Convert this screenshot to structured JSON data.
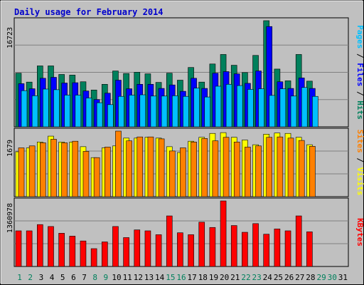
{
  "title": "Daily usage for February 2014",
  "colors": {
    "hits": "#00805c",
    "files": "#0000ff",
    "pages": "#00c0ff",
    "visits": "#ffff00",
    "sites": "#ff8000",
    "kbytes": "#ff0000",
    "weekday": "#000000",
    "weekend": "#00805c"
  },
  "chart_data": [
    {
      "type": "bar",
      "panel": "top",
      "ymax_label": "16723",
      "ylim": [
        0,
        16723
      ],
      "legend": [
        "Pages",
        "Files",
        "Hits"
      ],
      "categories": [
        "1",
        "2",
        "3",
        "4",
        "5",
        "6",
        "7",
        "8",
        "9",
        "10",
        "11",
        "12",
        "13",
        "14",
        "15",
        "16",
        "17",
        "18",
        "19",
        "20",
        "21",
        "22",
        "23",
        "24",
        "25",
        "26",
        "27",
        "28",
        "29",
        "30",
        "31"
      ],
      "series": [
        {
          "name": "Hits",
          "values": [
            8450,
            7050,
            9600,
            9600,
            8250,
            8150,
            7100,
            5800,
            6700,
            8800,
            8400,
            8600,
            8350,
            7000,
            8450,
            7350,
            9350,
            7050,
            9900,
            11400,
            9700,
            8550,
            11250,
            16723,
            9100,
            7250,
            11400,
            7200,
            null,
            null,
            null
          ]
        },
        {
          "name": "Files",
          "values": [
            6800,
            6000,
            7650,
            7800,
            6900,
            6950,
            5650,
            4300,
            5300,
            7350,
            6000,
            6700,
            6700,
            6050,
            6600,
            5600,
            7650,
            6050,
            8450,
            8700,
            8350,
            6850,
            8800,
            15800,
            7100,
            6050,
            7700,
            6050,
            null,
            null,
            null
          ]
        },
        {
          "name": "Pages",
          "values": [
            5700,
            4900,
            5950,
            5850,
            5000,
            5000,
            4550,
            3800,
            3500,
            4800,
            5000,
            5050,
            4850,
            4850,
            4900,
            4800,
            6100,
            4700,
            6400,
            6700,
            6500,
            5900,
            6000,
            4950,
            6000,
            4850,
            6200,
            4800,
            null,
            null,
            null
          ]
        }
      ]
    },
    {
      "type": "bar",
      "panel": "middle",
      "ymax_label": "1679",
      "ylim": [
        0,
        1679
      ],
      "legend": [
        "Sites",
        "Visits"
      ],
      "categories": [
        "1",
        "2",
        "3",
        "4",
        "5",
        "6",
        "7",
        "8",
        "9",
        "10",
        "11",
        "12",
        "13",
        "14",
        "15",
        "16",
        "17",
        "18",
        "19",
        "20",
        "21",
        "22",
        "23",
        "24",
        "25",
        "26",
        "27",
        "28",
        "29",
        "30",
        "31"
      ],
      "series": [
        {
          "name": "Visits",
          "values": [
            1150,
            1250,
            1400,
            1550,
            1400,
            1400,
            1280,
            1000,
            1250,
            1300,
            1500,
            1500,
            1520,
            1500,
            1280,
            1130,
            1420,
            1520,
            1620,
            1640,
            1520,
            1450,
            1330,
            1600,
            1630,
            1620,
            1520,
            1330,
            null,
            null,
            null
          ]
        },
        {
          "name": "Sites",
          "values": [
            1250,
            1300,
            1380,
            1470,
            1380,
            1420,
            1160,
            1000,
            1270,
            1679,
            1430,
            1530,
            1530,
            1480,
            1170,
            1250,
            1400,
            1490,
            1430,
            1520,
            1400,
            1270,
            1300,
            1520,
            1530,
            1500,
            1440,
            1290,
            null,
            null,
            null
          ]
        }
      ]
    },
    {
      "type": "bar",
      "panel": "bottom",
      "ymax_label": "1360978",
      "ylim": [
        0,
        1360978
      ],
      "legend": [
        "KBytes"
      ],
      "categories": [
        "1",
        "2",
        "3",
        "4",
        "5",
        "6",
        "7",
        "8",
        "9",
        "10",
        "11",
        "12",
        "13",
        "14",
        "15",
        "16",
        "17",
        "18",
        "19",
        "20",
        "21",
        "22",
        "23",
        "24",
        "25",
        "26",
        "27",
        "28",
        "29",
        "30",
        "31"
      ],
      "series": [
        {
          "name": "KBytes",
          "values": [
            740000,
            740000,
            870000,
            830000,
            690000,
            630000,
            530000,
            370000,
            510000,
            830000,
            600000,
            760000,
            740000,
            660000,
            1050000,
            700000,
            660000,
            920000,
            810000,
            1360978,
            850000,
            710000,
            890000,
            670000,
            780000,
            740000,
            1050000,
            720000,
            null,
            null,
            null
          ]
        }
      ]
    }
  ]
}
